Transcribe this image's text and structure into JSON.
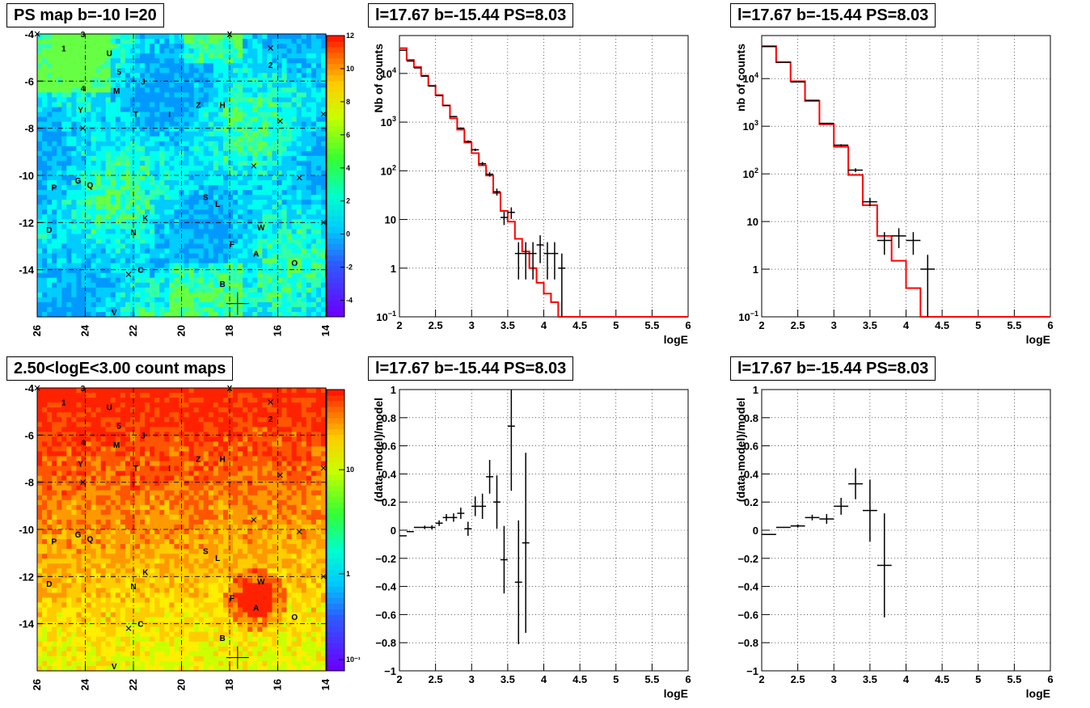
{
  "panels": {
    "ps_map": {
      "title": "PS map b=-10 l=20",
      "x_ticks": [
        "26",
        "24",
        "22",
        "20",
        "18",
        "16",
        "14"
      ],
      "y_ticks": [
        "-4",
        "-6",
        "-8",
        "-10",
        "-12",
        "-14"
      ],
      "colorbar_ticks": [
        "12",
        "10",
        "8",
        "6",
        "4",
        "2",
        "0",
        "-2",
        "-4"
      ],
      "colorbar_range": [
        -5,
        12
      ]
    },
    "count_map": {
      "title": "2.50<logE<3.00 count maps",
      "x_ticks": [
        "26",
        "24",
        "22",
        "20",
        "18",
        "16",
        "14"
      ],
      "y_ticks": [
        "-4",
        "-6",
        "-8",
        "-10",
        "-12",
        "-14"
      ],
      "colorbar_ticks": [
        "10",
        "1",
        "10⁻¹"
      ],
      "colorbar_scale": "log"
    },
    "spectrum_left": {
      "title": "l=17.67 b=-15.44 PS=8.03",
      "ylabel": "Nb of counts",
      "xlabel": "logE"
    },
    "spectrum_right": {
      "title": "l=17.67 b=-15.44 PS=8.03",
      "ylabel": "nb of counts",
      "xlabel": "logE"
    },
    "residual_left": {
      "title": "l=17.67 b=-15.44 PS=8.03",
      "ylabel": "(data-model)/model",
      "xlabel": "logE"
    },
    "residual_right": {
      "title": "l=17.67 b=-15.44 PS=8.03",
      "ylabel": "(data-model)/model",
      "xlabel": "logE"
    }
  },
  "source_labels": [
    {
      "label": "1",
      "l": 24.9,
      "b": -4.6
    },
    {
      "label": "3",
      "l": 24.1,
      "b": -4.0
    },
    {
      "label": "U",
      "l": 23.0,
      "b": -4.8
    },
    {
      "label": "5",
      "l": 22.6,
      "b": -5.6
    },
    {
      "label": "J",
      "l": 21.6,
      "b": -6.0
    },
    {
      "label": "4",
      "l": 24.1,
      "b": -6.3
    },
    {
      "label": "M",
      "l": 22.7,
      "b": -6.4
    },
    {
      "label": "Y",
      "l": 24.2,
      "b": -7.2
    },
    {
      "label": "T",
      "l": 21.9,
      "b": -7.4
    },
    {
      "label": "I",
      "l": 20.5,
      "b": -7.4
    },
    {
      "label": "Z",
      "l": 19.3,
      "b": -7.0
    },
    {
      "label": "H",
      "l": 18.3,
      "b": -7.0
    },
    {
      "label": "X",
      "l": 18.0,
      "b": -4.0
    },
    {
      "label": "2",
      "l": 16.3,
      "b": -5.3
    },
    {
      "label": "P",
      "l": 25.3,
      "b": -10.5
    },
    {
      "label": "G",
      "l": 24.3,
      "b": -10.2
    },
    {
      "label": "Q",
      "l": 23.8,
      "b": -10.4
    },
    {
      "label": "S",
      "l": 19.0,
      "b": -10.9
    },
    {
      "label": "L",
      "l": 18.5,
      "b": -11.2
    },
    {
      "label": "K",
      "l": 21.5,
      "b": -11.8
    },
    {
      "label": "W",
      "l": 16.7,
      "b": -12.2
    },
    {
      "label": "D",
      "l": 25.5,
      "b": -12.3
    },
    {
      "label": "N",
      "l": 22.0,
      "b": -12.4
    },
    {
      "label": "F",
      "l": 17.9,
      "b": -12.9
    },
    {
      "label": "A",
      "l": 16.9,
      "b": -13.3
    },
    {
      "label": "O",
      "l": 15.3,
      "b": -13.7
    },
    {
      "label": "C",
      "l": 21.7,
      "b": -14.0
    },
    {
      "label": "B",
      "l": 18.3,
      "b": -14.6
    },
    {
      "label": "V",
      "l": 22.8,
      "b": -15.8
    }
  ],
  "source_markers": [
    {
      "l": 16.3,
      "b": -4.6
    },
    {
      "l": 15.9,
      "b": -7.7
    },
    {
      "l": 14.1,
      "b": -7.4
    },
    {
      "l": 17.0,
      "b": -9.6
    },
    {
      "l": 15.1,
      "b": -10.1
    },
    {
      "l": 14.1,
      "b": -12.0
    },
    {
      "l": 22.2,
      "b": -14.2
    },
    {
      "l": 24.1,
      "b": -8.0
    },
    {
      "l": 26.0,
      "b": -4.0
    }
  ],
  "target_marker": {
    "l": 17.67,
    "b": -15.44
  },
  "chart_data": [
    {
      "type": "line",
      "x_axis": "logE",
      "ylabel": "Nb of counts",
      "xlim": [
        2,
        6
      ],
      "ylim": [
        0.1,
        60000
      ],
      "yscale": "log",
      "grid": true,
      "data_points": [
        {
          "x": 2.05,
          "y": 30000
        },
        {
          "x": 2.15,
          "y": 18000
        },
        {
          "x": 2.25,
          "y": 13000
        },
        {
          "x": 2.35,
          "y": 8800
        },
        {
          "x": 2.45,
          "y": 5500
        },
        {
          "x": 2.55,
          "y": 3500
        },
        {
          "x": 2.65,
          "y": 2200
        },
        {
          "x": 2.75,
          "y": 1300
        },
        {
          "x": 2.85,
          "y": 750
        },
        {
          "x": 2.95,
          "y": 400
        },
        {
          "x": 3.05,
          "y": 270
        },
        {
          "x": 3.15,
          "y": 140
        },
        {
          "x": 3.25,
          "y": 85
        },
        {
          "x": 3.35,
          "y": 37
        },
        {
          "x": 3.45,
          "y": 11
        },
        {
          "x": 3.55,
          "y": 14
        },
        {
          "x": 3.65,
          "y": 2
        },
        {
          "x": 3.75,
          "y": 2
        },
        {
          "x": 3.85,
          "y": 2
        },
        {
          "x": 3.95,
          "y": 3
        },
        {
          "x": 4.05,
          "y": 2
        },
        {
          "x": 4.15,
          "y": 2
        },
        {
          "x": 4.25,
          "y": 1
        }
      ],
      "model": {
        "edges": [
          2.0,
          2.1,
          2.2,
          2.3,
          2.4,
          2.5,
          2.6,
          2.7,
          2.8,
          2.9,
          3.0,
          3.1,
          3.2,
          3.3,
          3.4,
          3.5,
          3.6,
          3.7,
          3.8,
          3.9,
          4.0,
          4.1,
          4.2,
          4.3
        ],
        "values": [
          33000,
          19000,
          13500,
          9000,
          5600,
          3600,
          2200,
          1200,
          700,
          380,
          230,
          130,
          80,
          35,
          15,
          9,
          4,
          2.2,
          1.0,
          0.5,
          0.3,
          0.2,
          0.08
        ]
      }
    },
    {
      "type": "line",
      "x_axis": "logE",
      "ylabel": "nb of counts",
      "xlim": [
        2,
        6
      ],
      "ylim": [
        0.1,
        80000
      ],
      "yscale": "log",
      "grid": true,
      "data_points": [
        {
          "x": 2.1,
          "y": 47000
        },
        {
          "x": 2.3,
          "y": 22000
        },
        {
          "x": 2.5,
          "y": 8500
        },
        {
          "x": 2.7,
          "y": 3500
        },
        {
          "x": 2.9,
          "y": 1150
        },
        {
          "x": 3.1,
          "y": 400
        },
        {
          "x": 3.3,
          "y": 120
        },
        {
          "x": 3.5,
          "y": 26
        },
        {
          "x": 3.7,
          "y": 4
        },
        {
          "x": 3.9,
          "y": 5
        },
        {
          "x": 4.1,
          "y": 4
        },
        {
          "x": 4.3,
          "y": 1
        }
      ],
      "model": {
        "edges": [
          2.0,
          2.2,
          2.4,
          2.6,
          2.8,
          3.0,
          3.2,
          3.4,
          3.6,
          3.8,
          4.0,
          4.2,
          4.4
        ],
        "values": [
          48000,
          22000,
          8800,
          3400,
          1100,
          370,
          95,
          22,
          5,
          1.5,
          0.4,
          0.08
        ]
      }
    },
    {
      "type": "scatter",
      "x_axis": "logE",
      "ylabel": "(data-model)/model",
      "xlim": [
        2,
        6
      ],
      "ylim": [
        -1,
        1
      ],
      "grid": true,
      "data_points": [
        {
          "x": 2.05,
          "y": -0.04
        },
        {
          "x": 2.15,
          "y": -0.01
        },
        {
          "x": 2.25,
          "y": 0.02
        },
        {
          "x": 2.35,
          "y": 0.02
        },
        {
          "x": 2.45,
          "y": 0.02
        },
        {
          "x": 2.55,
          "y": 0.05
        },
        {
          "x": 2.65,
          "y": 0.09
        },
        {
          "x": 2.75,
          "y": 0.09
        },
        {
          "x": 2.85,
          "y": 0.12
        },
        {
          "x": 2.95,
          "y": 0.01
        },
        {
          "x": 3.05,
          "y": 0.17
        },
        {
          "x": 3.15,
          "y": 0.17
        },
        {
          "x": 3.25,
          "y": 0.38
        },
        {
          "x": 3.35,
          "y": 0.2
        },
        {
          "x": 3.45,
          "y": -0.21
        },
        {
          "x": 3.55,
          "y": 0.74
        },
        {
          "x": 3.65,
          "y": -0.37
        },
        {
          "x": 3.75,
          "y": -0.09
        }
      ]
    },
    {
      "type": "scatter",
      "x_axis": "logE",
      "ylabel": "(data-model)/model",
      "xlim": [
        2,
        6
      ],
      "ylim": [
        -1,
        1
      ],
      "grid": true,
      "data_points": [
        {
          "x": 2.1,
          "y": -0.03
        },
        {
          "x": 2.3,
          "y": 0.02
        },
        {
          "x": 2.5,
          "y": 0.03
        },
        {
          "x": 2.7,
          "y": 0.09
        },
        {
          "x": 2.9,
          "y": 0.08
        },
        {
          "x": 3.1,
          "y": 0.17
        },
        {
          "x": 3.3,
          "y": 0.33
        },
        {
          "x": 3.5,
          "y": 0.14
        },
        {
          "x": 3.7,
          "y": -0.25
        }
      ]
    }
  ]
}
